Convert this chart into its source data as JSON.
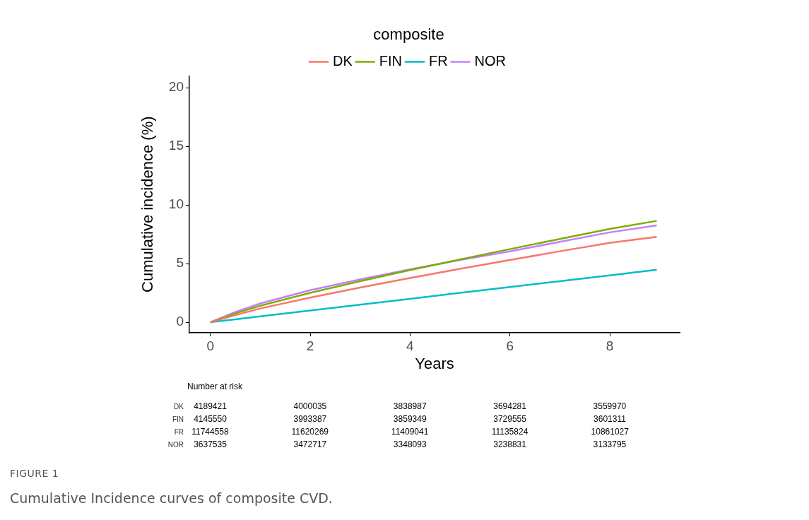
{
  "chart_data": {
    "type": "line",
    "legend_title": "composite",
    "xlabel": "Years",
    "ylabel": "Cumulative incidence (%)",
    "x": [
      0,
      0.5,
      1,
      2,
      3,
      4,
      5,
      6,
      7,
      8,
      8.94
    ],
    "series": [
      {
        "name": "DK",
        "color": "#f8766d",
        "values": [
          0,
          0.6,
          1.17,
          2.1,
          2.95,
          3.77,
          4.55,
          5.3,
          6.05,
          6.77,
          7.27
        ]
      },
      {
        "name": "FIN",
        "color": "#7cae00",
        "values": [
          0,
          0.75,
          1.4,
          2.5,
          3.5,
          4.45,
          5.35,
          6.23,
          7.1,
          7.95,
          8.64
        ]
      },
      {
        "name": "FR",
        "color": "#00bfc4",
        "values": [
          0,
          0.25,
          0.5,
          1.0,
          1.5,
          1.99,
          2.5,
          3.0,
          3.5,
          4.0,
          4.47
        ]
      },
      {
        "name": "NOR",
        "color": "#c77cff",
        "values": [
          0,
          0.87,
          1.6,
          2.73,
          3.65,
          4.5,
          5.3,
          6.04,
          6.85,
          7.66,
          8.25
        ]
      }
    ],
    "xlim": [
      -0.42,
      9.4
    ],
    "xticks": [
      0,
      2,
      4,
      6,
      8
    ],
    "ylim": [
      -0.9,
      21
    ],
    "yticks": [
      0,
      5,
      10,
      15,
      20
    ],
    "grid": false,
    "legend": "top",
    "marker": "none",
    "line_style": "solid",
    "annotations": [
      "Number at risk",
      "DK 4189421 4000035 3838987 3694281 3559970",
      "FIN 4145550 3993387 3859349 3729555 3601311",
      "FR 11744558 11620269 11409041 11135824 10861027",
      "NOR 3637535 3472717 3348093 3238831 3133795",
      "FIGURE 1",
      "Cumulative Incidence curves of composite CVD."
    ]
  }
}
